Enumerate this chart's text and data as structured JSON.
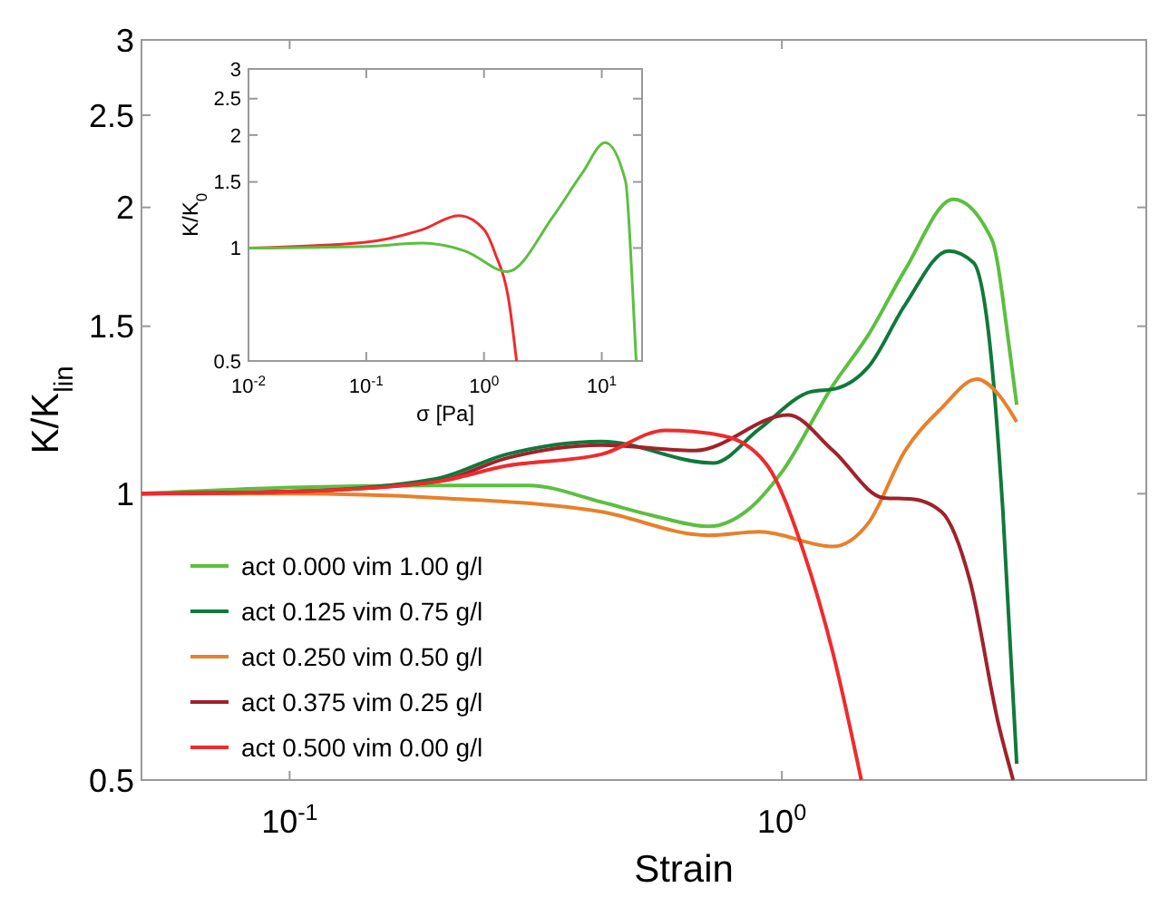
{
  "chart_data": [
    {
      "type": "line",
      "xlabel": "Strain",
      "ylabel": "K/K$_{lin}$",
      "log": "xy",
      "legend": "bottom left",
      "xlim": [
        0.05,
        5.5
      ],
      "ylim": [
        0.5,
        3
      ],
      "xticks": [
        {
          "value": 0.1,
          "label": "10$^{-1}$"
        },
        {
          "value": 1,
          "label": "10$^{0}$"
        }
      ],
      "yticks": [
        0.5,
        1,
        1.5,
        2,
        2.5,
        3
      ],
      "series": [
        {
          "name": "act 0.000 vim 1.00 g/l",
          "color": "#5cbf40",
          "x": [
            0.05,
            0.1,
            0.2,
            0.306,
            0.43,
            0.54,
            0.713,
            0.85,
            1.0,
            1.27,
            1.5,
            1.78,
            2.23,
            2.67,
            2.9,
            3.0
          ],
          "values": [
            1,
            1.015,
            1.02,
            1.02,
            0.98,
            0.95,
            0.924,
            0.96,
            1.054,
            1.3,
            1.47,
            1.72,
            2.04,
            1.85,
            1.42,
            1.24
          ]
        },
        {
          "name": "act 0.125 vim 0.75 g/l",
          "color": "#10793a",
          "x": [
            0.05,
            0.1,
            0.197,
            0.276,
            0.43,
            0.725,
            0.9,
            1.145,
            1.29,
            1.5,
            1.78,
            2.18,
            2.45,
            2.67,
            2.81,
            3.0
          ],
          "values": [
            1,
            1.005,
            1.036,
            1.1,
            1.135,
            1.077,
            1.17,
            1.28,
            1.29,
            1.36,
            1.58,
            1.8,
            1.75,
            1.37,
            0.965,
            0.52
          ]
        },
        {
          "name": "act 0.250 vim 0.50 g/l",
          "color": "#e8802a",
          "x": [
            0.05,
            0.1,
            0.2,
            0.43,
            0.71,
            0.9,
            1.27,
            1.5,
            1.78,
            2.11,
            2.49,
            2.76,
            3.0
          ],
          "values": [
            1,
            1,
            0.99,
            0.957,
            0.904,
            0.912,
            0.88,
            0.932,
            1.11,
            1.23,
            1.32,
            1.27,
            1.19
          ]
        },
        {
          "name": "act 0.375 vim 0.25 g/l",
          "color": "#a0222b",
          "x": [
            0.05,
            0.1,
            0.2,
            0.276,
            0.43,
            0.666,
            1.03,
            1.27,
            1.61,
            1.84,
            2.11,
            2.41,
            2.76,
            2.95
          ],
          "values": [
            1,
            1.005,
            1.03,
            1.09,
            1.125,
            1.11,
            1.21,
            1.11,
            0.99,
            0.987,
            0.957,
            0.81,
            0.57,
            0.5
          ]
        },
        {
          "name": "act 0.500 vim 0.00 g/l",
          "color": "#ef2b2d",
          "x": [
            0.05,
            0.1,
            0.2,
            0.276,
            0.43,
            0.58,
            0.763,
            0.935,
            1.107,
            1.27,
            1.45
          ],
          "values": [
            1,
            1.005,
            1.03,
            1.07,
            1.1,
            1.166,
            1.15,
            1.07,
            0.869,
            0.68,
            0.5
          ]
        }
      ]
    },
    {
      "type": "line",
      "xlabel": "σ [Pa]",
      "ylabel": "K/K$_{0}$",
      "log": "xy",
      "xlim": [
        0.01,
        22
      ],
      "ylim": [
        0.5,
        3
      ],
      "xticks": [
        {
          "value": 0.01,
          "label": "10$^{-2}$"
        },
        {
          "value": 0.1,
          "label": "10$^{-1}$"
        },
        {
          "value": 1,
          "label": "10$^{0}$"
        },
        {
          "value": 10,
          "label": "10$^{1}$"
        }
      ],
      "yticks": [
        0.5,
        1,
        1.5,
        2,
        2.5,
        3
      ],
      "series": [
        {
          "color": "#ef2b2d",
          "x": [
            0.01,
            0.096,
            0.3,
            0.61,
            1.0,
            1.24,
            1.64,
            1.89
          ],
          "values": [
            1,
            1.035,
            1.12,
            1.22,
            1.12,
            0.97,
            0.71,
            0.5
          ]
        },
        {
          "color": "#5cbf40",
          "x": [
            0.01,
            0.1,
            0.3,
            0.7,
            1.58,
            3.84,
            6.8,
            10.7,
            15.9,
            18.3,
            19.6
          ],
          "values": [
            1,
            1.01,
            1.03,
            0.98,
            0.865,
            1.21,
            1.58,
            1.91,
            1.51,
            0.77,
            0.5
          ]
        }
      ]
    }
  ]
}
